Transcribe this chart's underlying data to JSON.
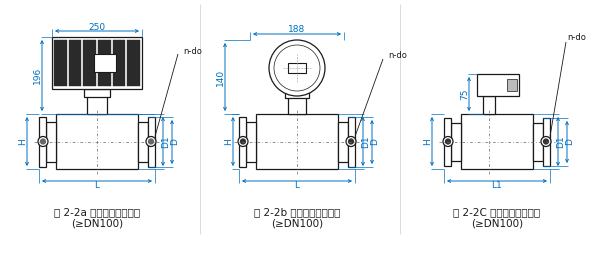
{
  "fig1_label": "图 2-2a 一体型电磁流量计",
  "fig1_sub": "(≥DN100)",
  "fig2_label": "图 2-2b 一体型电磁流量计",
  "fig2_sub": "(≥DN100)",
  "fig3_label": "图 2-2C 分离型电磁流量计",
  "fig3_sub": "(≥DN100)",
  "line_color": "#1a1a1a",
  "dim_color": "#0070C0",
  "bg_color": "#ffffff",
  "dim_fontsize": 6.5,
  "caption_fontsize": 7.5
}
